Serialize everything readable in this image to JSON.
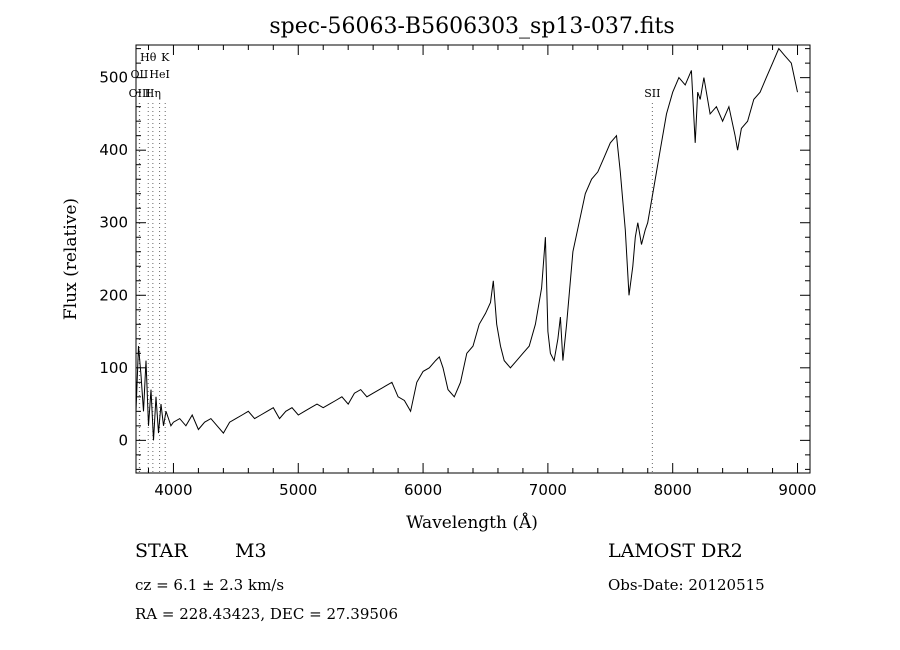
{
  "chart_data": {
    "type": "line",
    "title": "spec-56063-B5606303_sp13-037.fits",
    "xlabel": "Wavelength (Å)",
    "ylabel": "Flux (relative)",
    "xlim": [
      3700,
      9100
    ],
    "ylim": [
      -45,
      545
    ],
    "xticks": [
      4000,
      5000,
      6000,
      7000,
      8000,
      9000
    ],
    "yticks": [
      0,
      100,
      200,
      300,
      400,
      500
    ],
    "grid": false,
    "line_markers": [
      {
        "label": "Hθ",
        "x": 3798,
        "row": 0
      },
      {
        "label": "K",
        "x": 3934,
        "row": 0
      },
      {
        "label": "OII",
        "x": 3727,
        "row": 1
      },
      {
        "label": "HeI",
        "x": 3889,
        "row": 1
      },
      {
        "label": "OIII",
        "x": 3729,
        "row": 2
      },
      {
        "label": "Hη",
        "x": 3835,
        "row": 2
      },
      {
        "label": "SII",
        "x": 7837,
        "row": 2
      }
    ],
    "series": [
      {
        "x": [
          3700,
          3720,
          3740,
          3760,
          3780,
          3800,
          3820,
          3840,
          3860,
          3880,
          3900,
          3920,
          3940,
          3960,
          3980,
          4000,
          4050,
          4100,
          4150,
          4200,
          4250,
          4300,
          4350,
          4400,
          4450,
          4500,
          4550,
          4600,
          4650,
          4700,
          4750,
          4800,
          4850,
          4900,
          4950,
          5000,
          5050,
          5100,
          5150,
          5200,
          5250,
          5300,
          5350,
          5400,
          5450,
          5500,
          5550,
          5600,
          5650,
          5700,
          5750,
          5800,
          5850,
          5900,
          5950,
          6000,
          6050,
          6100,
          6130,
          6160,
          6200,
          6250,
          6300,
          6350,
          6400,
          6450,
          6500,
          6540,
          6563,
          6590,
          6620,
          6650,
          6700,
          6750,
          6800,
          6850,
          6900,
          6950,
          6980,
          7000,
          7020,
          7050,
          7080,
          7100,
          7120,
          7150,
          7200,
          7250,
          7300,
          7350,
          7400,
          7450,
          7500,
          7550,
          7580,
          7600,
          7620,
          7650,
          7680,
          7700,
          7720,
          7750,
          7780,
          7800,
          7850,
          7900,
          7950,
          8000,
          8050,
          8100,
          8150,
          8180,
          8200,
          8220,
          8250,
          8300,
          8350,
          8400,
          8450,
          8500,
          8520,
          8550,
          8600,
          8650,
          8700,
          8750,
          8800,
          8850,
          8900,
          8950,
          9000
        ],
        "values": [
          40,
          130,
          90,
          40,
          110,
          20,
          70,
          0,
          60,
          10,
          50,
          20,
          40,
          30,
          20,
          25,
          30,
          20,
          35,
          15,
          25,
          30,
          20,
          10,
          25,
          30,
          35,
          40,
          30,
          35,
          40,
          45,
          30,
          40,
          45,
          35,
          40,
          45,
          50,
          45,
          50,
          55,
          60,
          50,
          65,
          70,
          60,
          65,
          70,
          75,
          80,
          60,
          55,
          40,
          80,
          95,
          100,
          110,
          115,
          100,
          70,
          60,
          80,
          120,
          130,
          160,
          175,
          190,
          220,
          160,
          130,
          110,
          100,
          110,
          120,
          130,
          160,
          210,
          280,
          150,
          120,
          110,
          140,
          170,
          110,
          160,
          260,
          300,
          340,
          360,
          370,
          390,
          410,
          420,
          370,
          330,
          290,
          200,
          240,
          280,
          300,
          270,
          290,
          300,
          350,
          400,
          450,
          480,
          500,
          490,
          510,
          410,
          480,
          470,
          500,
          450,
          460,
          440,
          460,
          420,
          400,
          430,
          440,
          470,
          480,
          500,
          520,
          540,
          530,
          520,
          480
        ]
      }
    ]
  },
  "info": {
    "object_class": "STAR",
    "subclass": "M3",
    "redshift": "cz = 6.1 ± 2.3 km/s",
    "coords": "RA = 228.43423, DEC =  27.39506",
    "survey": "LAMOST DR2",
    "obs_date": "Obs-Date: 20120515"
  }
}
